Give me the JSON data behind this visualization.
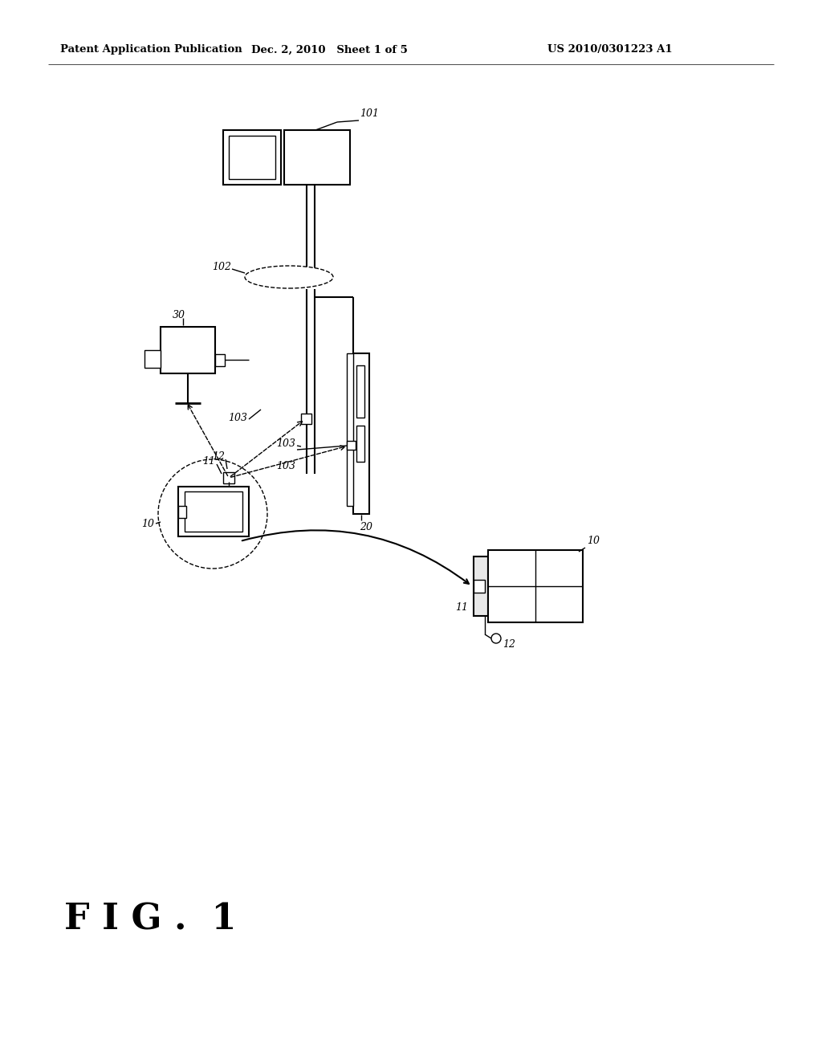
{
  "bg_color": "#ffffff",
  "line_color": "#000000",
  "header_left": "Patent Application Publication",
  "header_mid": "Dec. 2, 2010   Sheet 1 of 5",
  "header_right": "US 2010/0301223 A1",
  "fig_label": "F I G . 1"
}
